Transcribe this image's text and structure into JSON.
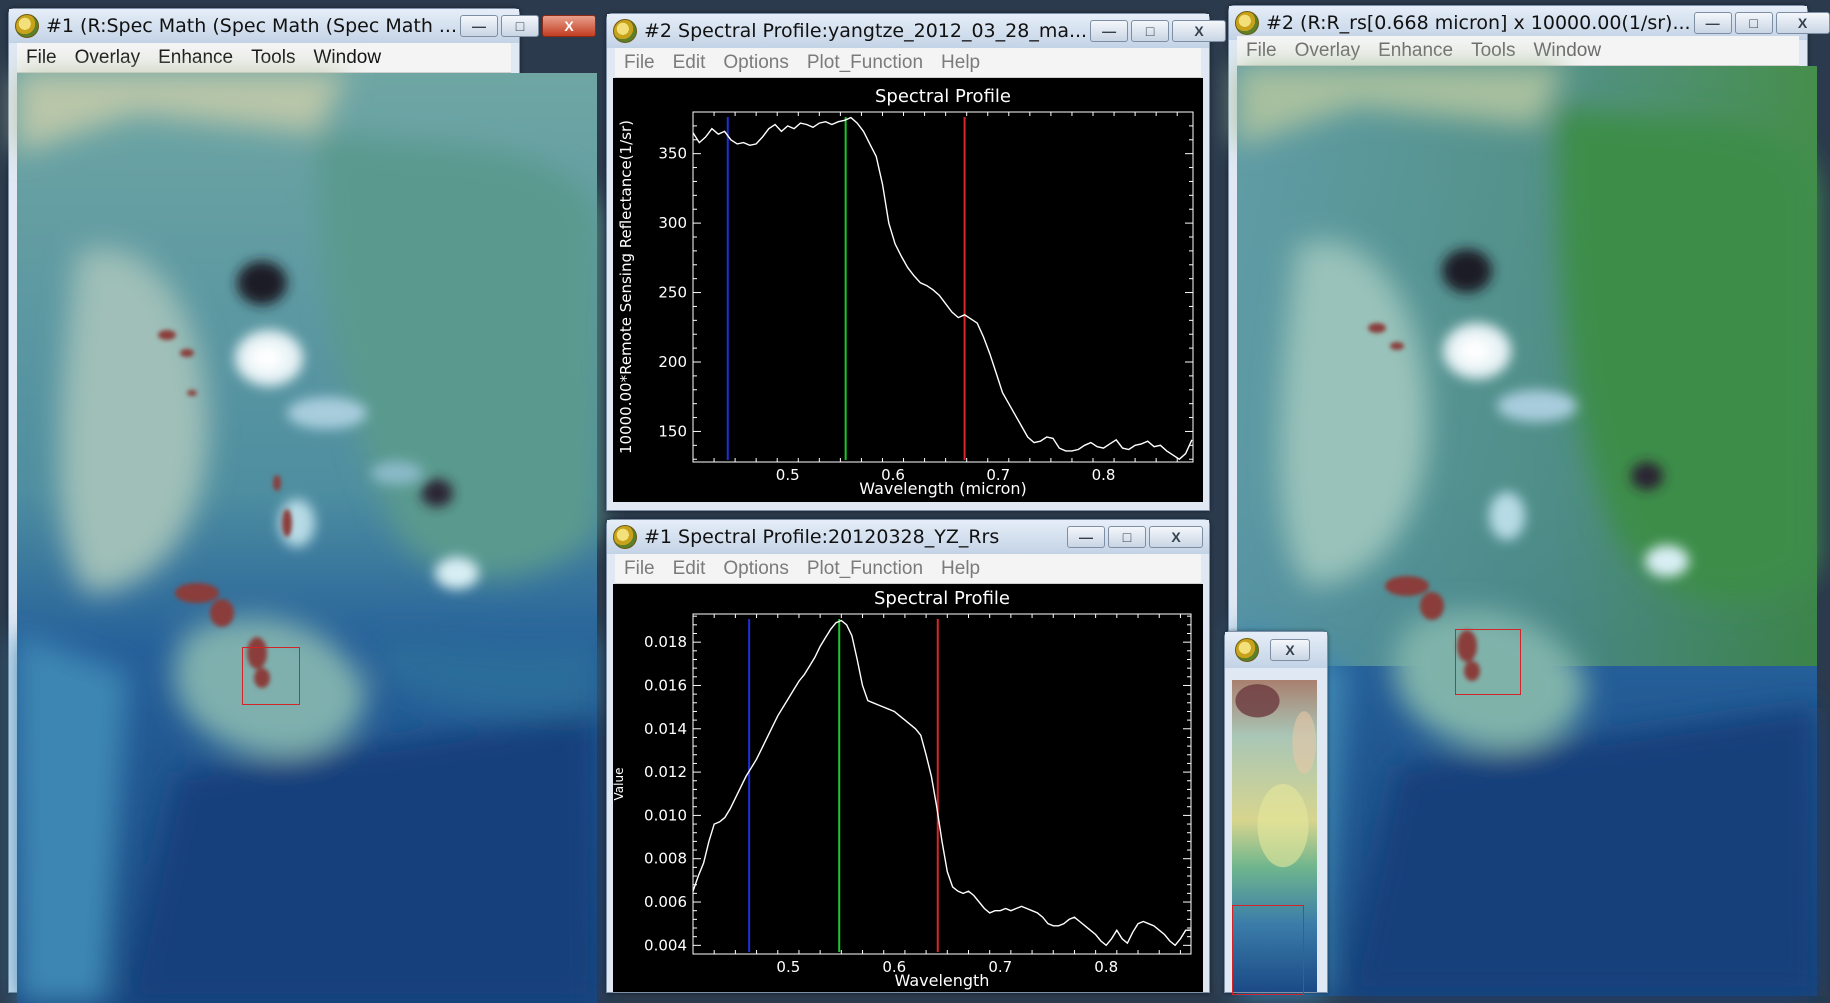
{
  "colors": {
    "profile_line": "#ffffff",
    "blue_band": "#1f2fd8",
    "green_band": "#18c928",
    "red_band": "#d8262a",
    "roi_box": "#d2252a"
  },
  "title_buttons": {
    "minimize": "—",
    "maximize": "□",
    "close": "X"
  },
  "image_window_1": {
    "title": "#1 (R:Spec Math (Spec Math (Spec Math ...",
    "menu": [
      "File",
      "Overlay",
      "Enhance",
      "Tools",
      "Window"
    ]
  },
  "profile_window_2": {
    "title": "#2 Spectral Profile:yangtze_2012_03_28_ma...",
    "menu": [
      "File",
      "Edit",
      "Options",
      "Plot_Function",
      "Help"
    ],
    "chart_data": {
      "type": "line",
      "title": "Spectral Profile",
      "xlabel": "Wavelength (micron)",
      "ylabel": "10000.00*Remote Sensing Reflectance(1/sr)",
      "xlim": [
        0.41,
        0.885
      ],
      "ylim": [
        128,
        380
      ],
      "xticks": [
        "0.5",
        "0.6",
        "0.7",
        "0.8"
      ],
      "xtick_values": [
        0.5,
        0.6,
        0.7,
        0.8
      ],
      "yticks": [
        "150",
        "200",
        "250",
        "300",
        "350"
      ],
      "ytick_values": [
        150,
        200,
        250,
        300,
        350
      ],
      "band_lines": [
        {
          "band": "blue",
          "x": 0.443
        },
        {
          "band": "green",
          "x": 0.555
        },
        {
          "band": "red",
          "x": 0.668
        }
      ],
      "series": [
        {
          "x": [
            0.41,
            0.416,
            0.422,
            0.428,
            0.434,
            0.44,
            0.446,
            0.452,
            0.458,
            0.464,
            0.47,
            0.476,
            0.482,
            0.488,
            0.494,
            0.5,
            0.506,
            0.512,
            0.518,
            0.524,
            0.53,
            0.536,
            0.542,
            0.548,
            0.554,
            0.56,
            0.566,
            0.572,
            0.578,
            0.584,
            0.59,
            0.596,
            0.602,
            0.608,
            0.614,
            0.62,
            0.626,
            0.632,
            0.638,
            0.644,
            0.65,
            0.656,
            0.662,
            0.668,
            0.674,
            0.68,
            0.686,
            0.692,
            0.698,
            0.704,
            0.71,
            0.716,
            0.722,
            0.728,
            0.734,
            0.74,
            0.746,
            0.752,
            0.758,
            0.764,
            0.77,
            0.776,
            0.782,
            0.788,
            0.794,
            0.8,
            0.806,
            0.812,
            0.818,
            0.824,
            0.83,
            0.836,
            0.842,
            0.848,
            0.854,
            0.86,
            0.866,
            0.872,
            0.878,
            0.884
          ],
          "y": [
            365,
            358,
            362,
            368,
            364,
            366,
            360,
            357,
            358,
            356,
            357,
            362,
            368,
            371,
            366,
            370,
            368,
            372,
            371,
            369,
            372,
            373,
            371,
            373,
            374,
            376,
            372,
            366,
            357,
            348,
            328,
            300,
            285,
            276,
            268,
            262,
            257,
            255,
            252,
            248,
            242,
            236,
            232,
            234,
            231,
            228,
            218,
            206,
            192,
            178,
            170,
            162,
            154,
            146,
            142,
            143,
            146,
            145,
            138,
            136,
            136,
            137,
            140,
            142,
            139,
            138,
            141,
            144,
            138,
            137,
            140,
            141,
            143,
            139,
            140,
            136,
            133,
            130,
            134,
            144
          ]
        }
      ]
    }
  },
  "profile_window_1": {
    "title": "#1 Spectral Profile:20120328_YZ_Rrs",
    "menu": [
      "File",
      "Edit",
      "Options",
      "Plot_Function",
      "Help"
    ],
    "chart_data": {
      "type": "line",
      "title": "Spectral Profile",
      "xlabel": "Wavelength",
      "ylabel": "Value",
      "xlim": [
        0.41,
        0.88
      ],
      "ylim": [
        0.0036,
        0.0193
      ],
      "xticks": [
        "0.5",
        "0.6",
        "0.7",
        "0.8"
      ],
      "xtick_values": [
        0.5,
        0.6,
        0.7,
        0.8
      ],
      "yticks": [
        "0.004",
        "0.006",
        "0.008",
        "0.010",
        "0.012",
        "0.014",
        "0.016",
        "0.018"
      ],
      "ytick_values": [
        0.004,
        0.006,
        0.008,
        0.01,
        0.012,
        0.014,
        0.016,
        0.018
      ],
      "band_lines": [
        {
          "band": "blue",
          "x": 0.463
        },
        {
          "band": "green",
          "x": 0.548
        },
        {
          "band": "red",
          "x": 0.641
        }
      ],
      "series": [
        {
          "x": [
            0.41,
            0.415,
            0.42,
            0.425,
            0.43,
            0.435,
            0.44,
            0.445,
            0.45,
            0.455,
            0.46,
            0.465,
            0.47,
            0.475,
            0.48,
            0.485,
            0.49,
            0.495,
            0.5,
            0.505,
            0.51,
            0.515,
            0.52,
            0.525,
            0.53,
            0.535,
            0.54,
            0.545,
            0.55,
            0.555,
            0.56,
            0.565,
            0.57,
            0.575,
            0.58,
            0.585,
            0.59,
            0.595,
            0.6,
            0.605,
            0.61,
            0.615,
            0.62,
            0.625,
            0.63,
            0.635,
            0.64,
            0.645,
            0.65,
            0.655,
            0.66,
            0.665,
            0.67,
            0.675,
            0.68,
            0.685,
            0.69,
            0.695,
            0.7,
            0.705,
            0.71,
            0.715,
            0.72,
            0.725,
            0.73,
            0.735,
            0.74,
            0.745,
            0.75,
            0.755,
            0.76,
            0.765,
            0.77,
            0.775,
            0.78,
            0.785,
            0.79,
            0.795,
            0.8,
            0.805,
            0.81,
            0.815,
            0.82,
            0.825,
            0.83,
            0.835,
            0.84,
            0.845,
            0.85,
            0.855,
            0.86,
            0.865,
            0.87,
            0.875,
            0.88
          ],
          "y": [
            0.0065,
            0.0072,
            0.0078,
            0.0088,
            0.0096,
            0.0097,
            0.0099,
            0.0103,
            0.0108,
            0.0113,
            0.0118,
            0.0122,
            0.0126,
            0.0131,
            0.0136,
            0.0141,
            0.0146,
            0.015,
            0.0154,
            0.0158,
            0.0162,
            0.0165,
            0.0169,
            0.0173,
            0.0178,
            0.0182,
            0.0186,
            0.0189,
            0.019,
            0.0188,
            0.0183,
            0.0172,
            0.016,
            0.0153,
            0.0152,
            0.0151,
            0.015,
            0.0149,
            0.0148,
            0.0146,
            0.0144,
            0.0142,
            0.014,
            0.0137,
            0.0128,
            0.0118,
            0.0104,
            0.0088,
            0.0074,
            0.0067,
            0.0065,
            0.0064,
            0.0065,
            0.0063,
            0.006,
            0.0057,
            0.0055,
            0.0056,
            0.0056,
            0.0057,
            0.0056,
            0.0057,
            0.0058,
            0.0057,
            0.0056,
            0.0055,
            0.0053,
            0.005,
            0.0049,
            0.0049,
            0.005,
            0.0052,
            0.0053,
            0.0051,
            0.0049,
            0.0047,
            0.0045,
            0.0042,
            0.004,
            0.0043,
            0.0047,
            0.0043,
            0.0041,
            0.0046,
            0.005,
            0.0051,
            0.005,
            0.0049,
            0.0047,
            0.0045,
            0.0042,
            0.004,
            0.0043,
            0.0047,
            0.0047
          ]
        }
      ]
    }
  },
  "image_window_2": {
    "title": "#2 (R:R_rs[0.668 micron] x 10000.00(1/sr)...",
    "menu": [
      "File",
      "Overlay",
      "Enhance",
      "Tools",
      "Window"
    ]
  }
}
